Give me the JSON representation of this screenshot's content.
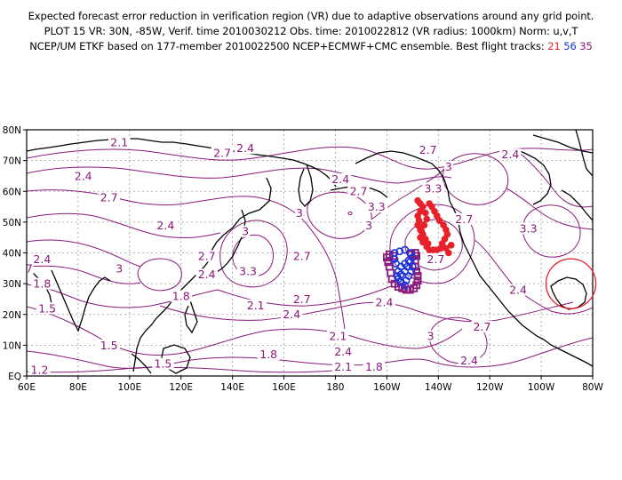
{
  "title": {
    "line1": "Expected forecast error reduction in verification region (VR) due to adaptive observations around any grid point.",
    "line2": "PLOT 15 VR: 30N, -85W, Verif. time 2010030212 Obs. time: 2010022812 (VR radius: 1000km) Norm: u,v,T",
    "line3_prefix": "NCEP/UM ETKF based on 177-member 2010022500 NCEP+ECMWF+CMC ensemble. Best flight tracks:",
    "tracks": [
      "21",
      "56",
      "35"
    ]
  },
  "map": {
    "x_ticks": [
      "60E",
      "80E",
      "100E",
      "120E",
      "140E",
      "160E",
      "180",
      "160W",
      "140W",
      "120W",
      "100W",
      "80W"
    ],
    "y_ticks": [
      "EQ",
      "10N",
      "20N",
      "30N",
      "40N",
      "50N",
      "60N",
      "70N",
      "80N"
    ],
    "contour_labels": [
      {
        "text": "2.1",
        "lon": 96,
        "lat": 75
      },
      {
        "text": "2.7",
        "lon": 136,
        "lat": 71.5
      },
      {
        "text": "2.4",
        "lon": 145,
        "lat": 73
      },
      {
        "text": "2.4",
        "lon": 82,
        "lat": 64
      },
      {
        "text": "2.7",
        "lon": 92,
        "lat": 57
      },
      {
        "text": "2.4",
        "lon": 114,
        "lat": 48
      },
      {
        "text": "2.4",
        "lon": 66,
        "lat": 37
      },
      {
        "text": "3",
        "lon": 96,
        "lat": 34
      },
      {
        "text": "1.8",
        "lon": 66,
        "lat": 29
      },
      {
        "text": "7",
        "lon": 61,
        "lat": 34
      },
      {
        "text": "1.5",
        "lon": 68,
        "lat": 21
      },
      {
        "text": "1.5",
        "lon": 92,
        "lat": 9
      },
      {
        "text": "1.5",
        "lon": 113,
        "lat": 3
      },
      {
        "text": "1.2",
        "lon": 65,
        "lat": 1
      },
      {
        "text": "2.7",
        "lon": 130,
        "lat": 38
      },
      {
        "text": "2.4",
        "lon": 130,
        "lat": 32
      },
      {
        "text": "3",
        "lon": 145,
        "lat": 46
      },
      {
        "text": "3.3",
        "lon": 146,
        "lat": 33
      },
      {
        "text": "1.8",
        "lon": 120,
        "lat": 25
      },
      {
        "text": "2.1",
        "lon": 149,
        "lat": 22
      },
      {
        "text": "2.7",
        "lon": 167,
        "lat": 24
      },
      {
        "text": "2.4",
        "lon": 163,
        "lat": 19
      },
      {
        "text": "3",
        "lon": 166,
        "lat": 52
      },
      {
        "text": "2.7",
        "lon": 167,
        "lat": 38
      },
      {
        "text": "1.8",
        "lon": 154,
        "lat": 6
      },
      {
        "text": "2.1",
        "lon": 181,
        "lat": 12
      },
      {
        "text": "2.4",
        "lon": 183,
        "lat": 7
      },
      {
        "text": "2.1",
        "lon": 183,
        "lat": 2
      },
      {
        "text": "1.8",
        "lon": 195,
        "lat": 2
      },
      {
        "text": "2.4",
        "lon": 199,
        "lat": 23
      },
      {
        "text": "2.4",
        "lon": 182,
        "lat": 63
      },
      {
        "text": "2.7",
        "lon": 189,
        "lat": 59
      },
      {
        "text": "3",
        "lon": 193,
        "lat": 48
      },
      {
        "text": "3.3",
        "lon": 196,
        "lat": 54
      },
      {
        "text": "2.7",
        "lon": 216,
        "lat": 72.5
      },
      {
        "text": "3",
        "lon": 224,
        "lat": 67
      },
      {
        "text": "3.3",
        "lon": 218,
        "lat": 60
      },
      {
        "text": "2.4",
        "lon": 248,
        "lat": 71
      },
      {
        "text": "2.7",
        "lon": 230,
        "lat": 50
      },
      {
        "text": "3.3",
        "lon": 255,
        "lat": 47
      },
      {
        "text": "2.7",
        "lon": 219,
        "lat": 37
      },
      {
        "text": "2.4",
        "lon": 251,
        "lat": 27
      },
      {
        "text": "3",
        "lon": 217,
        "lat": 12
      },
      {
        "text": "2.7",
        "lon": 237,
        "lat": 15
      },
      {
        "text": "2.4",
        "lon": 232,
        "lat": 4
      }
    ],
    "track_21_points": [
      [
        -148,
        57
      ],
      [
        -147,
        56
      ],
      [
        -146,
        55
      ],
      [
        -147,
        53.5
      ],
      [
        -148,
        52
      ],
      [
        -147.5,
        50.5
      ],
      [
        -148,
        49
      ],
      [
        -147,
        47.5
      ],
      [
        -146,
        46
      ],
      [
        -145,
        44.5
      ],
      [
        -144,
        43
      ],
      [
        -144.5,
        42
      ],
      [
        -146,
        43.5
      ],
      [
        -147,
        45
      ],
      [
        -146.5,
        47
      ],
      [
        -145.5,
        49
      ],
      [
        -144.5,
        51
      ],
      [
        -145,
        53
      ],
      [
        -143.5,
        56
      ],
      [
        -142.5,
        55
      ],
      [
        -141.5,
        53.5
      ],
      [
        -140.5,
        52
      ],
      [
        -139.5,
        50.5
      ],
      [
        -138,
        49
      ],
      [
        -137,
        47.5
      ],
      [
        -136.5,
        46
      ],
      [
        -137.5,
        44.5
      ],
      [
        -138.5,
        43
      ],
      [
        -139,
        41.5
      ],
      [
        -140.5,
        41
      ],
      [
        -142,
        41
      ],
      [
        -143.5,
        41
      ],
      [
        -137,
        41.5
      ],
      [
        -136,
        40
      ],
      [
        -135,
        42.5
      ]
    ],
    "track_56_points": [
      [
        -157,
        40
      ],
      [
        -155,
        40.5
      ],
      [
        -153,
        41
      ],
      [
        -151,
        40
      ],
      [
        -150,
        38.5
      ],
      [
        -151.5,
        37.5
      ],
      [
        -153,
        36.5
      ],
      [
        -154.5,
        35.5
      ],
      [
        -155.5,
        34
      ],
      [
        -156,
        32.5
      ],
      [
        -154.5,
        33
      ],
      [
        -153,
        34
      ],
      [
        -152,
        35.5
      ],
      [
        -151,
        37
      ],
      [
        -150,
        35.5
      ],
      [
        -150.5,
        34
      ],
      [
        -151.5,
        32.5
      ],
      [
        -152.5,
        31
      ],
      [
        -153,
        29.5
      ],
      [
        -154.5,
        30.5
      ],
      [
        -155.5,
        31.5
      ],
      [
        -156.5,
        36.5
      ],
      [
        -157,
        38
      ]
    ],
    "track_35_points": [
      [
        -159,
        35.5
      ],
      [
        -158.5,
        33.5
      ],
      [
        -158,
        31.5
      ],
      [
        -157,
        30
      ],
      [
        -155.5,
        29
      ],
      [
        -154,
        28.5
      ],
      [
        -152.5,
        28
      ],
      [
        -151,
        28
      ],
      [
        -149.5,
        28.5
      ],
      [
        -148.5,
        29.5
      ],
      [
        -148,
        31
      ],
      [
        -148,
        32.5
      ],
      [
        -148.5,
        34
      ],
      [
        -149,
        35.5
      ],
      [
        -149,
        37.5
      ],
      [
        -148.5,
        39
      ],
      [
        -149,
        40
      ],
      [
        -150.5,
        39.5
      ],
      [
        -159.5,
        37
      ],
      [
        -160,
        38.5
      ],
      [
        -159,
        39.5
      ],
      [
        -157.5,
        39
      ]
    ],
    "verification_region": {
      "lat": 30,
      "lon": -85,
      "radius_km": 1000
    },
    "colors": {
      "contour": "#8a1a7a",
      "coast": "#000000",
      "grid": "#9b9b9b",
      "track_21": "#e8202a",
      "track_56": "#1a33d8",
      "track_35": "#8a1a7a",
      "vr_circle": "#e8202a"
    }
  }
}
